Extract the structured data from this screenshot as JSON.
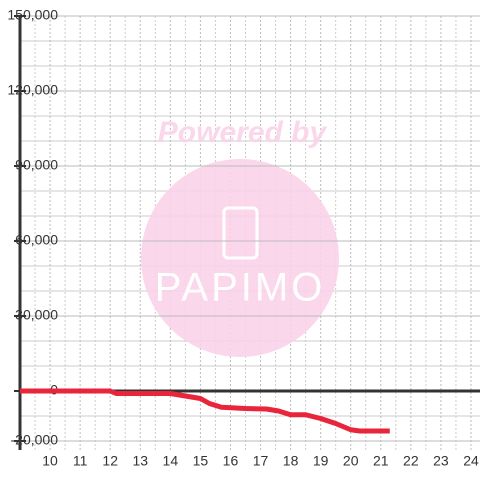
{
  "chart_data": {
    "type": "line",
    "x": [
      9,
      12,
      12.2,
      14,
      14.5,
      15,
      15.3,
      15.7,
      16.5,
      17.2,
      17.6,
      18,
      18.5,
      19,
      19.5,
      20,
      20.3,
      21.3
    ],
    "series": [
      {
        "name": null,
        "color": "#e8253a",
        "values": [
          0,
          0,
          -1000,
          -1000,
          -2000,
          -3000,
          -5000,
          -6500,
          -7000,
          -7200,
          -8000,
          -9500,
          -9500,
          -11000,
          -13000,
          -15500,
          -16000,
          -16000
        ]
      }
    ],
    "xlim": [
      9,
      24.3
    ],
    "xticks": [
      10,
      11,
      12,
      13,
      14,
      15,
      16,
      17,
      18,
      19,
      20,
      21,
      22,
      23,
      24
    ],
    "minor_xticks": [
      9.5,
      10.5,
      11.5,
      12.5,
      13.5,
      14.5,
      15.5,
      16.5,
      17.5,
      18.5,
      19.5,
      20.5,
      21.5,
      22.5,
      23.5
    ],
    "ylim": [
      -20000,
      150000
    ],
    "yticks": [
      {
        "value": -20000,
        "label": "-20,000"
      },
      0,
      {
        "value": 30000,
        "label": "30,000"
      },
      {
        "value": 60000,
        "label": "60,000"
      },
      {
        "value": 90000,
        "label": "90,000"
      },
      {
        "value": 120000,
        "label": "120,000"
      },
      {
        "value": 150000,
        "label": "150,000"
      }
    ],
    "minor_yticks": [
      -10000,
      10000,
      20000,
      40000,
      50000,
      70000,
      80000,
      100000,
      110000,
      130000,
      140000
    ],
    "grid": true,
    "watermark": {
      "line1": "Powered by",
      "line2": "PAPIMO"
    }
  }
}
